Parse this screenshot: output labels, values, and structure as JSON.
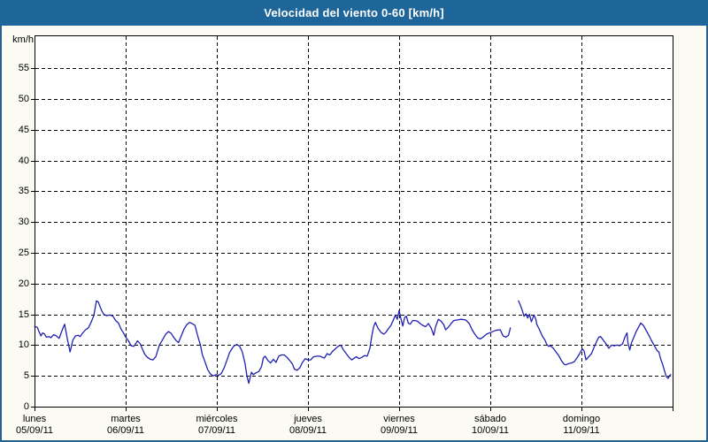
{
  "window": {
    "title": "Velocidad del viento 0-60 [km/h]"
  },
  "colors": {
    "titlebar_bg": "#1e6699",
    "frame_border": "#27628e",
    "content_bg": "#fbfbf4",
    "plot_bg": "#ffffff",
    "grid_axis": "#000000",
    "series_line": "#2121b0",
    "title_text": "#ffffff"
  },
  "chart_data": {
    "type": "line",
    "title": "Velocidad del viento 0-60 [km/h]",
    "ylabel": "km/h",
    "ylim": [
      0,
      60
    ],
    "y_ticks": [
      0,
      5,
      10,
      15,
      20,
      25,
      30,
      35,
      40,
      45,
      50,
      55
    ],
    "grid": "dashed",
    "legend": "none",
    "x_unit": "days since lunes 05/09/11 (0 = inicio lunes, 7 = fin domingo)",
    "x_days": [
      {
        "name": "lunes",
        "date": "05/09/11"
      },
      {
        "name": "martes",
        "date": "06/09/11"
      },
      {
        "name": "miércoles",
        "date": "07/09/11"
      },
      {
        "name": "jueves",
        "date": "08/09/11"
      },
      {
        "name": "viernes",
        "date": "09/09/11"
      },
      {
        "name": "sábado",
        "date": "10/09/11"
      },
      {
        "name": "domingo",
        "date": "11/09/11"
      }
    ],
    "series": [
      {
        "name": "Velocidad del viento",
        "color": "#2121b0",
        "segments": [
          [
            [
              0.0,
              13.0
            ],
            [
              0.03,
              12.9
            ],
            [
              0.05,
              12.2
            ],
            [
              0.07,
              11.5
            ],
            [
              0.09,
              12.0
            ],
            [
              0.11,
              11.8
            ],
            [
              0.13,
              11.3
            ],
            [
              0.16,
              11.4
            ],
            [
              0.18,
              11.2
            ],
            [
              0.21,
              11.7
            ],
            [
              0.24,
              11.5
            ],
            [
              0.27,
              11.1
            ],
            [
              0.3,
              12.3
            ],
            [
              0.33,
              13.4
            ],
            [
              0.36,
              11.0
            ],
            [
              0.39,
              8.9
            ],
            [
              0.42,
              10.8
            ],
            [
              0.45,
              11.5
            ],
            [
              0.48,
              11.6
            ],
            [
              0.5,
              11.4
            ],
            [
              0.53,
              12.0
            ],
            [
              0.56,
              12.5
            ],
            [
              0.59,
              12.8
            ],
            [
              0.62,
              13.7
            ],
            [
              0.65,
              14.8
            ],
            [
              0.68,
              17.2
            ],
            [
              0.7,
              17.0
            ],
            [
              0.72,
              16.2
            ],
            [
              0.74,
              15.5
            ],
            [
              0.76,
              15.0
            ],
            [
              0.79,
              14.8
            ],
            [
              0.83,
              14.9
            ],
            [
              0.86,
              14.7
            ],
            [
              0.89,
              14.0
            ],
            [
              0.92,
              13.6
            ],
            [
              0.95,
              12.6
            ],
            [
              0.98,
              11.9
            ],
            [
              1.0,
              11.3
            ],
            [
              1.03,
              10.7
            ],
            [
              1.06,
              9.9
            ],
            [
              1.09,
              9.8
            ],
            [
              1.13,
              10.7
            ],
            [
              1.16,
              10.2
            ],
            [
              1.18,
              9.5
            ],
            [
              1.21,
              8.5
            ],
            [
              1.24,
              8.0
            ],
            [
              1.27,
              7.7
            ],
            [
              1.3,
              7.6
            ],
            [
              1.33,
              8.1
            ],
            [
              1.37,
              10.0
            ],
            [
              1.41,
              11.0
            ],
            [
              1.44,
              11.8
            ],
            [
              1.47,
              12.2
            ],
            [
              1.5,
              11.9
            ],
            [
              1.52,
              11.4
            ],
            [
              1.55,
              10.8
            ],
            [
              1.58,
              10.4
            ],
            [
              1.61,
              11.5
            ],
            [
              1.64,
              12.6
            ],
            [
              1.67,
              13.3
            ],
            [
              1.7,
              13.7
            ],
            [
              1.73,
              13.5
            ],
            [
              1.76,
              13.2
            ],
            [
              1.79,
              11.5
            ],
            [
              1.82,
              10.0
            ],
            [
              1.84,
              8.5
            ],
            [
              1.87,
              7.3
            ],
            [
              1.9,
              6.0
            ],
            [
              1.93,
              5.3
            ],
            [
              1.96,
              5.0
            ],
            [
              1.99,
              5.2
            ],
            [
              2.02,
              5.1
            ],
            [
              2.05,
              5.4
            ],
            [
              2.08,
              6.3
            ],
            [
              2.11,
              7.5
            ],
            [
              2.14,
              8.8
            ],
            [
              2.17,
              9.5
            ],
            [
              2.19,
              9.9
            ],
            [
              2.22,
              10.1
            ],
            [
              2.25,
              9.8
            ],
            [
              2.28,
              8.9
            ],
            [
              2.31,
              7.0
            ],
            [
              2.33,
              5.0
            ],
            [
              2.35,
              3.8
            ],
            [
              2.38,
              5.6
            ],
            [
              2.4,
              5.2
            ],
            [
              2.43,
              5.5
            ],
            [
              2.46,
              5.7
            ],
            [
              2.49,
              6.5
            ],
            [
              2.51,
              7.9
            ],
            [
              2.53,
              8.2
            ],
            [
              2.56,
              7.5
            ],
            [
              2.59,
              7.1
            ],
            [
              2.62,
              7.7
            ],
            [
              2.65,
              7.2
            ],
            [
              2.68,
              8.2
            ],
            [
              2.71,
              8.4
            ],
            [
              2.74,
              8.4
            ],
            [
              2.77,
              8.0
            ],
            [
              2.8,
              7.5
            ],
            [
              2.83,
              6.9
            ],
            [
              2.85,
              6.1
            ],
            [
              2.88,
              5.9
            ],
            [
              2.91,
              6.3
            ],
            [
              2.94,
              7.2
            ],
            [
              2.97,
              7.8
            ],
            [
              3.0,
              7.6
            ],
            [
              3.03,
              7.6
            ],
            [
              3.06,
              8.1
            ],
            [
              3.1,
              8.2
            ],
            [
              3.13,
              8.2
            ],
            [
              3.16,
              8.0
            ],
            [
              3.18,
              7.9
            ],
            [
              3.21,
              8.6
            ],
            [
              3.24,
              8.4
            ],
            [
              3.27,
              9.0
            ],
            [
              3.3,
              9.4
            ],
            [
              3.33,
              9.8
            ],
            [
              3.36,
              10.0
            ],
            [
              3.39,
              9.2
            ],
            [
              3.42,
              8.6
            ],
            [
              3.45,
              8.0
            ],
            [
              3.48,
              7.6
            ],
            [
              3.5,
              7.8
            ],
            [
              3.53,
              8.1
            ],
            [
              3.56,
              7.8
            ],
            [
              3.59,
              8.0
            ],
            [
              3.62,
              8.3
            ],
            [
              3.65,
              8.2
            ],
            [
              3.68,
              9.5
            ],
            [
              3.7,
              11.5
            ],
            [
              3.72,
              13.0
            ],
            [
              3.74,
              13.7
            ],
            [
              3.77,
              12.7
            ],
            [
              3.8,
              12.1
            ],
            [
              3.83,
              11.8
            ],
            [
              3.85,
              12.0
            ],
            [
              3.88,
              12.6
            ],
            [
              3.91,
              13.2
            ],
            [
              3.94,
              14.2
            ],
            [
              3.96,
              14.9
            ],
            [
              3.98,
              14.2
            ],
            [
              4.0,
              15.6
            ],
            [
              4.02,
              14.3
            ],
            [
              4.04,
              13.1
            ],
            [
              4.06,
              14.5
            ],
            [
              4.08,
              14.7
            ],
            [
              4.1,
              13.6
            ],
            [
              4.12,
              13.4
            ],
            [
              4.15,
              14.0
            ],
            [
              4.17,
              14.0
            ],
            [
              4.2,
              13.9
            ],
            [
              4.23,
              13.5
            ],
            [
              4.26,
              13.2
            ],
            [
              4.29,
              13.0
            ],
            [
              4.32,
              13.5
            ],
            [
              4.35,
              12.8
            ],
            [
              4.38,
              11.6
            ],
            [
              4.4,
              13.0
            ],
            [
              4.43,
              14.2
            ],
            [
              4.46,
              13.9
            ],
            [
              4.49,
              13.3
            ],
            [
              4.51,
              12.5
            ],
            [
              4.54,
              12.9
            ],
            [
              4.57,
              13.5
            ],
            [
              4.6,
              14.0
            ],
            [
              4.64,
              14.1
            ],
            [
              4.68,
              14.2
            ],
            [
              4.73,
              14.1
            ],
            [
              4.77,
              13.5
            ],
            [
              4.8,
              12.5
            ],
            [
              4.83,
              11.8
            ],
            [
              4.86,
              11.2
            ],
            [
              4.89,
              11.0
            ],
            [
              4.92,
              11.3
            ],
            [
              4.96,
              11.8
            ],
            [
              5.01,
              12.1
            ],
            [
              5.06,
              12.4
            ],
            [
              5.11,
              12.5
            ],
            [
              5.14,
              11.5
            ],
            [
              5.17,
              11.3
            ],
            [
              5.2,
              11.6
            ],
            [
              5.22,
              12.8
            ]
          ],
          [
            [
              5.31,
              17.2
            ],
            [
              5.33,
              16.5
            ],
            [
              5.35,
              15.7
            ],
            [
              5.37,
              14.7
            ],
            [
              5.39,
              15.1
            ],
            [
              5.41,
              14.4
            ],
            [
              5.43,
              15.0
            ],
            [
              5.45,
              13.8
            ],
            [
              5.48,
              14.9
            ],
            [
              5.5,
              14.2
            ],
            [
              5.51,
              13.4
            ],
            [
              5.54,
              12.5
            ],
            [
              5.57,
              11.5
            ],
            [
              5.6,
              10.8
            ],
            [
              5.62,
              10.1
            ],
            [
              5.64,
              9.8
            ],
            [
              5.66,
              9.9
            ],
            [
              5.69,
              9.5
            ],
            [
              5.72,
              8.9
            ],
            [
              5.75,
              8.3
            ],
            [
              5.78,
              7.5
            ],
            [
              5.81,
              6.9
            ],
            [
              5.83,
              6.8
            ],
            [
              5.86,
              7.0
            ],
            [
              5.89,
              7.1
            ],
            [
              5.92,
              7.3
            ],
            [
              5.95,
              7.9
            ],
            [
              5.98,
              8.6
            ],
            [
              6.01,
              9.4
            ],
            [
              6.03,
              9.0
            ],
            [
              6.05,
              7.6
            ],
            [
              6.08,
              8.1
            ],
            [
              6.11,
              8.6
            ],
            [
              6.14,
              9.7
            ],
            [
              6.17,
              10.7
            ],
            [
              6.19,
              11.3
            ],
            [
              6.21,
              11.4
            ],
            [
              6.24,
              10.8
            ],
            [
              6.27,
              10.2
            ],
            [
              6.3,
              9.5
            ],
            [
              6.33,
              10.0
            ],
            [
              6.36,
              9.9
            ],
            [
              6.39,
              10.0
            ],
            [
              6.42,
              9.9
            ],
            [
              6.45,
              10.2
            ],
            [
              6.48,
              11.4
            ],
            [
              6.5,
              12.0
            ],
            [
              6.51,
              10.4
            ],
            [
              6.53,
              9.2
            ],
            [
              6.55,
              10.4
            ],
            [
              6.57,
              11.1
            ],
            [
              6.6,
              12.2
            ],
            [
              6.63,
              13.0
            ],
            [
              6.65,
              13.6
            ],
            [
              6.68,
              13.2
            ],
            [
              6.71,
              12.4
            ],
            [
              6.74,
              11.6
            ],
            [
              6.77,
              10.7
            ],
            [
              6.8,
              9.9
            ],
            [
              6.83,
              9.1
            ],
            [
              6.85,
              8.9
            ],
            [
              6.87,
              7.7
            ],
            [
              6.89,
              6.9
            ],
            [
              6.91,
              5.9
            ],
            [
              6.93,
              4.9
            ],
            [
              6.95,
              4.6
            ],
            [
              6.97,
              5.1
            ],
            [
              6.98,
              5.2
            ]
          ]
        ]
      }
    ]
  }
}
